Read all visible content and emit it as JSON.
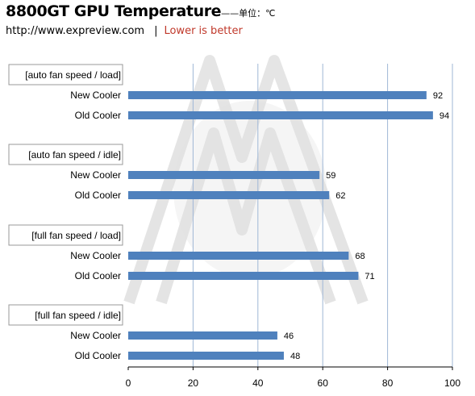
{
  "header": {
    "title": "8800GT GPU Temperature",
    "unit_label": "——单位：℃",
    "url": "http://www.expreview.com",
    "separator": "|",
    "note": "Lower is better"
  },
  "colors": {
    "bar": "#4f81bd",
    "note": "#c0392b",
    "grid": "#9fb7d6"
  },
  "chart_data": {
    "type": "bar",
    "orientation": "horizontal",
    "xlim": [
      0,
      100
    ],
    "xticks": [
      0,
      20,
      40,
      60,
      80,
      100
    ],
    "grid": true,
    "groups": [
      {
        "label": "[auto fan speed / load]",
        "items": [
          {
            "name": "New Cooler",
            "value": 92
          },
          {
            "name": "Old Cooler",
            "value": 94
          }
        ]
      },
      {
        "label": "[auto fan speed / idle]",
        "items": [
          {
            "name": "New Cooler",
            "value": 59
          },
          {
            "name": "Old Cooler",
            "value": 62
          }
        ]
      },
      {
        "label": "[full fan speed / load]",
        "items": [
          {
            "name": "New Cooler",
            "value": 68
          },
          {
            "name": "Old Cooler",
            "value": 71
          }
        ]
      },
      {
        "label": "[full fan speed / idle]",
        "items": [
          {
            "name": "New Cooler",
            "value": 46
          },
          {
            "name": "Old Cooler",
            "value": 48
          }
        ]
      }
    ]
  }
}
